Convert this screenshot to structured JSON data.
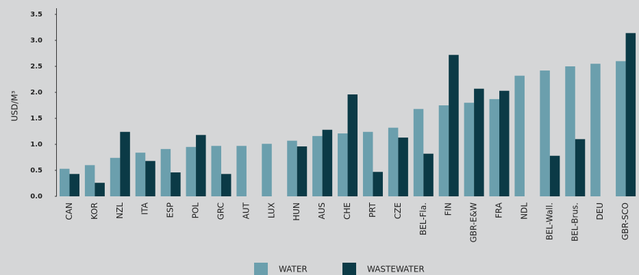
{
  "chart_data": {
    "type": "bar",
    "y_label": "USD/M³",
    "categories": [
      "CAN",
      "KOR",
      "NZL",
      "ITA",
      "ESP",
      "POL",
      "GRC",
      "AUT",
      "LUX",
      "HUN",
      "AUS",
      "CHE",
      "PRT",
      "CZE",
      "BEL-Fla.",
      "FIN",
      "GBR-E&W",
      "FRA",
      "NDL",
      "BEL-Wall.",
      "BEL-Brus.",
      "DEU",
      "GBR-SCO"
    ],
    "series": [
      {
        "name": "WATER",
        "color": "#6b9fad",
        "values": [
          0.53,
          0.6,
          0.74,
          0.84,
          0.91,
          0.95,
          0.97,
          0.97,
          1.01,
          1.07,
          1.16,
          1.21,
          1.24,
          1.32,
          1.68,
          1.75,
          1.8,
          1.87,
          2.32,
          2.42,
          2.5,
          2.55,
          2.6
        ]
      },
      {
        "name": "WASTEWATER",
        "color": "#0b3a46",
        "values": [
          0.43,
          0.26,
          1.24,
          0.68,
          0.46,
          1.18,
          0.43,
          null,
          null,
          0.96,
          1.28,
          1.96,
          0.47,
          1.13,
          0.82,
          2.72,
          2.07,
          2.03,
          null,
          0.78,
          1.1,
          null,
          3.14
        ]
      }
    ],
    "ylim": [
      0,
      3.5
    ],
    "yticks": [
      {
        "value": 0,
        "label": "0.0"
      },
      0.5,
      {
        "value": 1,
        "label": "1.0"
      },
      1.5,
      {
        "value": 2,
        "label": "2.0"
      },
      2.5,
      {
        "value": 3,
        "label": "3.0"
      },
      3.5
    ],
    "grid": false,
    "legend": "bottom"
  }
}
